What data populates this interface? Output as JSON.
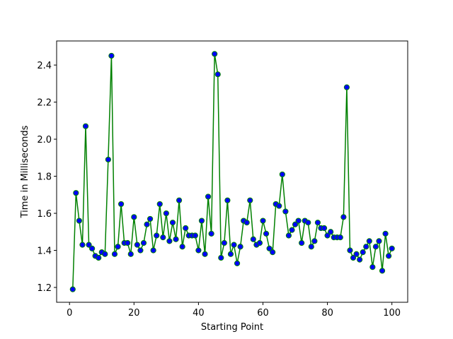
{
  "chart_data": {
    "type": "line",
    "title": "",
    "xlabel": "Starting Point",
    "ylabel": "Time in Milliseconds",
    "xlim": [
      -4.0,
      104.9
    ],
    "ylim": [
      1.12,
      2.53
    ],
    "xticks": [
      0,
      20,
      40,
      60,
      80,
      100
    ],
    "xtick_labels": [
      "0",
      "20",
      "40",
      "60",
      "80",
      "100"
    ],
    "yticks": [
      1.2,
      1.4,
      1.6,
      1.8,
      2.0,
      2.2,
      2.4
    ],
    "ytick_labels": [
      "1.2",
      "1.4",
      "1.6",
      "1.8",
      "2.0",
      "2.2",
      "2.4"
    ],
    "grid": false,
    "colors": {
      "line": "#008000",
      "marker_fill": "#0000ff",
      "marker_edge": "#008000"
    },
    "series": [
      {
        "x": [
          1,
          2,
          3,
          4,
          5,
          6,
          7,
          8,
          9,
          10,
          11,
          12,
          13,
          14,
          15,
          16,
          17,
          18,
          19,
          20,
          21,
          22,
          23,
          24,
          25,
          26,
          27,
          28,
          29,
          30,
          31,
          32,
          33,
          34,
          35,
          36,
          37,
          38,
          39,
          40,
          41,
          42,
          43,
          44,
          45,
          46,
          47,
          48,
          49,
          50,
          51,
          52,
          53,
          54,
          55,
          56,
          57,
          58,
          59,
          60,
          61,
          62,
          63,
          64,
          65,
          66,
          67,
          68,
          69,
          70,
          71,
          72,
          73,
          74,
          75,
          76,
          77,
          78,
          79,
          80,
          81,
          82,
          83,
          84,
          85,
          86,
          87,
          88,
          89,
          90,
          91,
          92,
          93,
          94,
          95,
          96,
          97,
          98,
          99,
          100
        ],
        "y": [
          1.19,
          1.71,
          1.56,
          1.43,
          2.07,
          1.43,
          1.41,
          1.37,
          1.36,
          1.39,
          1.38,
          1.89,
          2.45,
          1.38,
          1.42,
          1.65,
          1.44,
          1.44,
          1.38,
          1.58,
          1.43,
          1.4,
          1.44,
          1.54,
          1.57,
          1.4,
          1.48,
          1.65,
          1.47,
          1.6,
          1.45,
          1.55,
          1.46,
          1.67,
          1.42,
          1.52,
          1.48,
          1.48,
          1.48,
          1.4,
          1.56,
          1.38,
          1.69,
          1.49,
          2.46,
          2.35,
          1.36,
          1.44,
          1.67,
          1.38,
          1.43,
          1.33,
          1.42,
          1.56,
          1.55,
          1.67,
          1.46,
          1.43,
          1.44,
          1.56,
          1.49,
          1.41,
          1.39,
          1.65,
          1.64,
          1.81,
          1.61,
          1.48,
          1.51,
          1.54,
          1.56,
          1.44,
          1.56,
          1.55,
          1.42,
          1.45,
          1.55,
          1.52,
          1.52,
          1.48,
          1.5,
          1.47,
          1.47,
          1.47,
          1.58,
          2.28,
          1.4,
          1.36,
          1.38,
          1.35,
          1.39,
          1.42,
          1.45,
          1.31,
          1.42,
          1.45,
          1.29,
          1.49,
          1.37,
          1.41
        ]
      }
    ]
  }
}
